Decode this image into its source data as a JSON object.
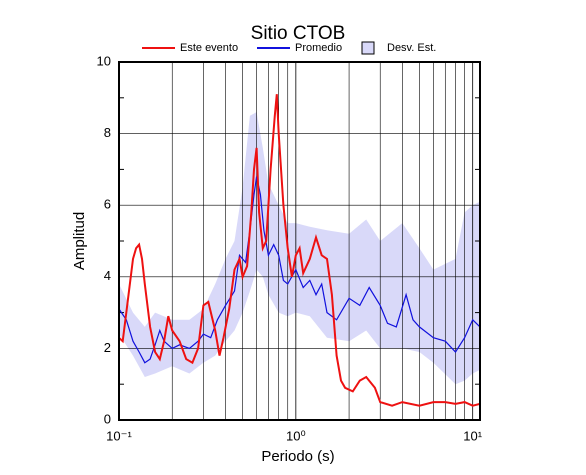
{
  "chart_data": {
    "type": "line",
    "title": "Sitio CTOB",
    "x_label": "Periodo (s)",
    "y_label": "Amplitud",
    "xscale": "log",
    "xlim": [
      0.1,
      11
    ],
    "ylim": [
      0,
      10
    ],
    "xticks": [
      {
        "value": 0.1,
        "label": "10⁻¹"
      },
      {
        "value": 1,
        "label": "10⁰"
      },
      {
        "value": 10,
        "label": "10¹"
      }
    ],
    "xgrid_minor": [
      0.2,
      0.3,
      0.4,
      0.5,
      0.6,
      0.7,
      0.8,
      0.9,
      2,
      3,
      4,
      5,
      6,
      7,
      8,
      9
    ],
    "yticks": [
      0,
      2,
      4,
      6,
      8,
      10
    ],
    "yticks_minor": [
      1,
      3,
      5,
      7,
      9
    ],
    "grid": true,
    "legend": "top",
    "band": {
      "name": "Desv. Est.",
      "color": "#d9d9f9",
      "x": [
        0.1,
        0.12,
        0.14,
        0.16,
        0.2,
        0.25,
        0.3,
        0.35,
        0.4,
        0.45,
        0.5,
        0.55,
        0.6,
        0.65,
        0.7,
        0.8,
        0.9,
        1.0,
        1.2,
        1.5,
        2,
        2.5,
        3,
        4,
        5,
        6,
        8,
        9,
        10,
        11
      ],
      "lower": [
        2.4,
        1.8,
        1.2,
        1.3,
        1.5,
        1.3,
        1.6,
        1.8,
        2.2,
        2.5,
        3.0,
        3.6,
        4.2,
        4.0,
        3.5,
        3.0,
        2.9,
        3.0,
        2.9,
        2.3,
        2.2,
        2.5,
        2.0,
        2.0,
        1.9,
        1.6,
        1.0,
        1.1,
        1.3,
        1.4
      ],
      "upper": [
        3.8,
        3.0,
        2.6,
        3.0,
        2.8,
        2.8,
        3.1,
        3.8,
        4.5,
        5.0,
        6.5,
        8.5,
        8.6,
        7.6,
        6.6,
        6.0,
        5.5,
        5.5,
        5.4,
        5.3,
        5.2,
        5.6,
        5.0,
        5.5,
        4.8,
        4.2,
        4.5,
        5.8,
        6.0,
        6.1
      ]
    },
    "series": [
      {
        "name": "Este evento",
        "color": "#ee1111",
        "x": [
          0.1,
          0.105,
          0.11,
          0.12,
          0.125,
          0.13,
          0.135,
          0.14,
          0.15,
          0.16,
          0.17,
          0.18,
          0.19,
          0.2,
          0.22,
          0.24,
          0.26,
          0.28,
          0.3,
          0.32,
          0.35,
          0.37,
          0.39,
          0.42,
          0.45,
          0.48,
          0.5,
          0.53,
          0.56,
          0.58,
          0.6,
          0.62,
          0.65,
          0.68,
          0.72,
          0.76,
          0.78,
          0.8,
          0.85,
          0.9,
          0.95,
          1.0,
          1.05,
          1.1,
          1.2,
          1.3,
          1.4,
          1.5,
          1.6,
          1.7,
          1.8,
          1.9,
          2.1,
          2.3,
          2.5,
          2.8,
          3.0,
          3.5,
          4,
          5,
          6,
          7,
          8,
          9,
          10,
          11
        ],
        "values": [
          2.3,
          2.2,
          3.0,
          4.5,
          4.8,
          4.9,
          4.5,
          3.8,
          2.6,
          1.9,
          1.7,
          2.2,
          2.9,
          2.5,
          2.2,
          1.7,
          1.6,
          2.0,
          3.2,
          3.3,
          2.5,
          1.8,
          2.3,
          3.1,
          4.2,
          4.5,
          4.0,
          4.3,
          5.8,
          7.0,
          7.6,
          5.8,
          4.8,
          5.0,
          7.0,
          8.5,
          9.1,
          8.0,
          6.0,
          4.8,
          4.0,
          4.6,
          4.8,
          4.1,
          4.5,
          5.1,
          4.6,
          4.5,
          3.5,
          1.8,
          1.1,
          0.9,
          0.8,
          1.1,
          1.2,
          0.9,
          0.5,
          0.4,
          0.5,
          0.4,
          0.5,
          0.5,
          0.45,
          0.5,
          0.4,
          0.45
        ]
      },
      {
        "name": "Promedio",
        "color": "#1111dd",
        "x": [
          0.1,
          0.11,
          0.12,
          0.13,
          0.14,
          0.15,
          0.16,
          0.17,
          0.18,
          0.2,
          0.22,
          0.25,
          0.28,
          0.3,
          0.33,
          0.36,
          0.4,
          0.45,
          0.48,
          0.52,
          0.55,
          0.58,
          0.6,
          0.63,
          0.66,
          0.7,
          0.75,
          0.8,
          0.85,
          0.9,
          1.0,
          1.1,
          1.2,
          1.3,
          1.4,
          1.5,
          1.7,
          2.0,
          2.3,
          2.6,
          3.0,
          3.3,
          3.7,
          4.2,
          4.6,
          5,
          6,
          7,
          8,
          9,
          10,
          11
        ],
        "values": [
          3.1,
          2.8,
          2.2,
          1.9,
          1.6,
          1.7,
          2.1,
          2.5,
          2.2,
          2.0,
          2.1,
          2.0,
          2.2,
          2.4,
          2.3,
          2.8,
          3.2,
          3.6,
          4.6,
          4.4,
          5.3,
          6.3,
          6.8,
          6.3,
          5.3,
          4.6,
          4.9,
          4.6,
          3.9,
          3.8,
          4.2,
          3.7,
          3.9,
          3.5,
          3.8,
          3.0,
          2.8,
          3.4,
          3.2,
          3.7,
          3.2,
          2.7,
          2.6,
          3.5,
          2.8,
          2.6,
          2.3,
          2.2,
          1.9,
          2.3,
          2.8,
          2.6
        ]
      }
    ]
  }
}
